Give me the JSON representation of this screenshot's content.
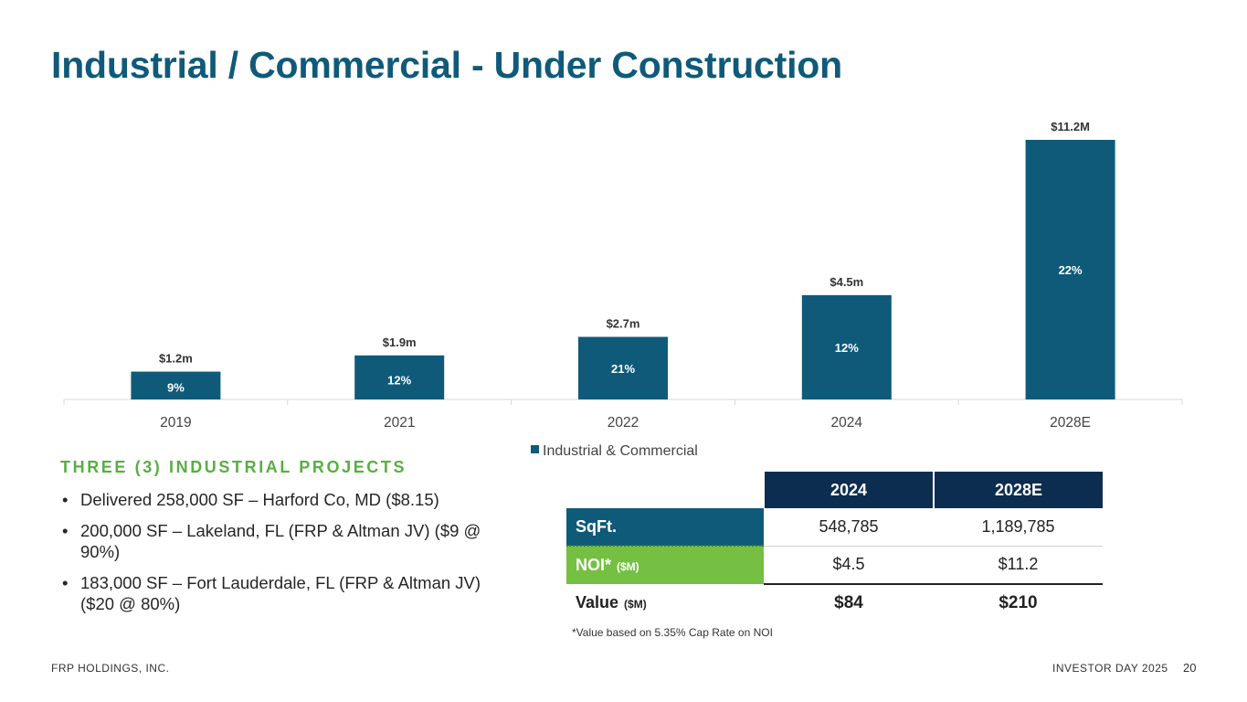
{
  "slide": {
    "title": "Industrial / Commercial  - Under Construction",
    "footer_left": "FRP HOLDINGS, INC.",
    "footer_right": "INVESTOR DAY 2025",
    "page_number": "20"
  },
  "chart_data": {
    "type": "bar",
    "categories": [
      "2019",
      "2021",
      "2022",
      "2024",
      "2028E"
    ],
    "series": [
      {
        "name": "Industrial & Commercial",
        "values": [
          1.2,
          1.9,
          2.7,
          4.5,
          11.2
        ],
        "value_labels": [
          "$1.2m",
          "$1.9m",
          "$2.7m",
          "$4.5m",
          "$11.2M"
        ],
        "inner_labels": [
          "9%",
          "12%",
          "21%",
          "12%",
          "22%"
        ]
      }
    ],
    "ylim": [
      0,
      11.2
    ],
    "title": "",
    "xlabel": "",
    "ylabel": "",
    "legend": "bottom",
    "colors": {
      "bar": "#0f5a79",
      "axis": "#d9d9d9"
    }
  },
  "projects": {
    "heading": "THREE (3) INDUSTRIAL PROJECTS",
    "items": [
      "Delivered 258,000 SF – Harford Co, MD ($8.15)",
      "200,000 SF – Lakeland, FL  (FRP & Altman JV) ($9 @ 90%)",
      "183,000 SF – Fort Lauderdale, FL (FRP & Altman JV) ($20 @ 80%)"
    ]
  },
  "kpi_table": {
    "columns": [
      "2024",
      "2028E"
    ],
    "rows": [
      {
        "label": "SqFt.",
        "unit": "",
        "values": [
          "548,785",
          "1,189,785"
        ]
      },
      {
        "label": "NOI*",
        "unit": "($M)",
        "values": [
          "$4.5",
          "$11.2"
        ]
      },
      {
        "label": "Value",
        "unit": "($M)",
        "values": [
          "$84",
          "$210"
        ]
      }
    ],
    "footnote": "*Value based on 5.35% Cap Rate on NOI"
  },
  "colors": {
    "title": "#0f5a79",
    "accent_green": "#56b040",
    "header_navy": "#0d2d50",
    "noi_green": "#75c043"
  }
}
